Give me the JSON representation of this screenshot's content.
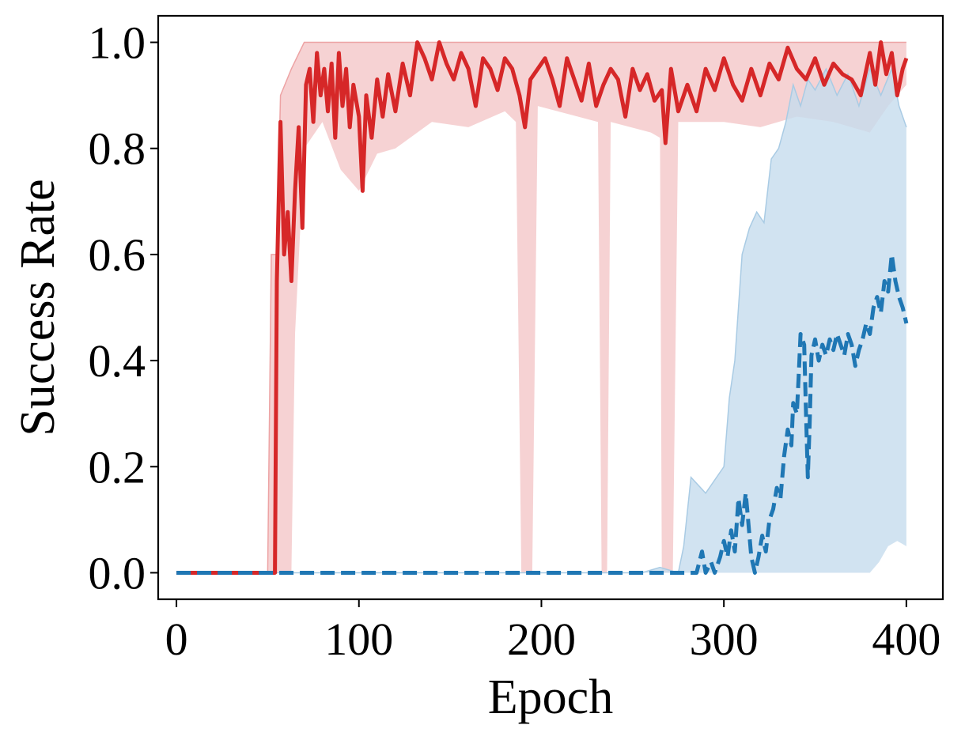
{
  "chart_data": {
    "type": "line",
    "title": "",
    "xlabel": "Epoch",
    "ylabel": "Success Rate",
    "xlim": [
      -10,
      420
    ],
    "ylim": [
      -0.05,
      1.05
    ],
    "xticks": [
      0,
      100,
      200,
      300,
      400
    ],
    "xtick_labels": [
      "0",
      "100",
      "200",
      "300",
      "400"
    ],
    "yticks": [
      0.0,
      0.2,
      0.4,
      0.6,
      0.8,
      1.0
    ],
    "ytick_labels": [
      "0.0",
      "0.2",
      "0.4",
      "0.6",
      "0.8",
      "1.0"
    ],
    "grid": false,
    "legend": "none",
    "colors": {
      "red": "#d62728",
      "blue": "#1f77b4",
      "red_band": "#f4c7c8",
      "blue_band": "#c6dcee"
    },
    "series": [
      {
        "line_style": "solid",
        "color": "#d62728",
        "points": [
          [
            0,
            0.0
          ],
          [
            10,
            0.0
          ],
          [
            20,
            0.0
          ],
          [
            30,
            0.0
          ],
          [
            40,
            0.0
          ],
          [
            50,
            0.0
          ],
          [
            54,
            0.0
          ],
          [
            55,
            0.55
          ],
          [
            57,
            0.85
          ],
          [
            59,
            0.6
          ],
          [
            61,
            0.68
          ],
          [
            63,
            0.55
          ],
          [
            65,
            0.72
          ],
          [
            67,
            0.84
          ],
          [
            69,
            0.65
          ],
          [
            71,
            0.92
          ],
          [
            73,
            0.95
          ],
          [
            75,
            0.85
          ],
          [
            77,
            0.98
          ],
          [
            79,
            0.9
          ],
          [
            81,
            0.95
          ],
          [
            83,
            0.87
          ],
          [
            85,
            0.96
          ],
          [
            87,
            0.82
          ],
          [
            89,
            0.98
          ],
          [
            91,
            0.88
          ],
          [
            93,
            0.95
          ],
          [
            95,
            0.84
          ],
          [
            97,
            0.92
          ],
          [
            100,
            0.86
          ],
          [
            102,
            0.72
          ],
          [
            104,
            0.9
          ],
          [
            107,
            0.82
          ],
          [
            110,
            0.93
          ],
          [
            113,
            0.86
          ],
          [
            116,
            0.94
          ],
          [
            120,
            0.87
          ],
          [
            124,
            0.96
          ],
          [
            128,
            0.9
          ],
          [
            132,
            1.0
          ],
          [
            136,
            0.97
          ],
          [
            140,
            0.93
          ],
          [
            144,
            1.0
          ],
          [
            148,
            0.96
          ],
          [
            152,
            0.93
          ],
          [
            156,
            0.98
          ],
          [
            160,
            0.95
          ],
          [
            164,
            0.88
          ],
          [
            168,
            0.97
          ],
          [
            172,
            0.95
          ],
          [
            176,
            0.91
          ],
          [
            180,
            0.97
          ],
          [
            184,
            0.95
          ],
          [
            188,
            0.9
          ],
          [
            191,
            0.84
          ],
          [
            194,
            0.93
          ],
          [
            198,
            0.95
          ],
          [
            202,
            0.97
          ],
          [
            206,
            0.93
          ],
          [
            210,
            0.88
          ],
          [
            214,
            0.97
          ],
          [
            218,
            0.93
          ],
          [
            222,
            0.89
          ],
          [
            226,
            0.96
          ],
          [
            230,
            0.88
          ],
          [
            234,
            0.92
          ],
          [
            238,
            0.95
          ],
          [
            242,
            0.93
          ],
          [
            246,
            0.86
          ],
          [
            250,
            0.95
          ],
          [
            254,
            0.91
          ],
          [
            258,
            0.94
          ],
          [
            262,
            0.89
          ],
          [
            266,
            0.91
          ],
          [
            268,
            0.81
          ],
          [
            271,
            0.95
          ],
          [
            275,
            0.87
          ],
          [
            280,
            0.92
          ],
          [
            285,
            0.87
          ],
          [
            290,
            0.95
          ],
          [
            295,
            0.91
          ],
          [
            300,
            0.97
          ],
          [
            305,
            0.92
          ],
          [
            310,
            0.89
          ],
          [
            315,
            0.95
          ],
          [
            320,
            0.9
          ],
          [
            325,
            0.96
          ],
          [
            330,
            0.93
          ],
          [
            335,
            0.99
          ],
          [
            340,
            0.95
          ],
          [
            345,
            0.93
          ],
          [
            350,
            0.97
          ],
          [
            355,
            0.92
          ],
          [
            360,
            0.96
          ],
          [
            365,
            0.94
          ],
          [
            370,
            0.93
          ],
          [
            375,
            0.9
          ],
          [
            380,
            0.98
          ],
          [
            383,
            0.92
          ],
          [
            386,
            1.0
          ],
          [
            389,
            0.94
          ],
          [
            392,
            0.98
          ],
          [
            395,
            0.9
          ],
          [
            398,
            0.95
          ],
          [
            400,
            0.97
          ]
        ],
        "band_lower": [
          [
            0,
            0.0
          ],
          [
            50,
            0.0
          ],
          [
            63,
            0.0
          ],
          [
            65,
            0.45
          ],
          [
            70,
            0.8
          ],
          [
            80,
            0.85
          ],
          [
            90,
            0.76
          ],
          [
            100,
            0.72
          ],
          [
            110,
            0.79
          ],
          [
            120,
            0.8
          ],
          [
            140,
            0.85
          ],
          [
            160,
            0.84
          ],
          [
            180,
            0.87
          ],
          [
            186,
            0.85
          ],
          [
            189,
            0.0
          ],
          [
            195,
            0.0
          ],
          [
            198,
            0.88
          ],
          [
            220,
            0.86
          ],
          [
            231,
            0.85
          ],
          [
            233,
            0.0
          ],
          [
            236,
            0.0
          ],
          [
            238,
            0.85
          ],
          [
            260,
            0.83
          ],
          [
            265,
            0.82
          ],
          [
            266,
            0.0
          ],
          [
            272,
            0.0
          ],
          [
            275,
            0.85
          ],
          [
            300,
            0.85
          ],
          [
            320,
            0.84
          ],
          [
            340,
            0.86
          ],
          [
            360,
            0.85
          ],
          [
            380,
            0.83
          ],
          [
            390,
            0.88
          ],
          [
            400,
            0.92
          ]
        ],
        "band_upper": [
          [
            0,
            0.0
          ],
          [
            50,
            0.0
          ],
          [
            52,
            0.6
          ],
          [
            55,
            0.6
          ],
          [
            57,
            0.9
          ],
          [
            63,
            0.95
          ],
          [
            70,
            1.0
          ],
          [
            400,
            1.0
          ]
        ]
      },
      {
        "line_style": "dashed",
        "color": "#1f77b4",
        "points": [
          [
            0,
            0.0
          ],
          [
            50,
            0.0
          ],
          [
            100,
            0.0
          ],
          [
            150,
            0.0
          ],
          [
            200,
            0.0
          ],
          [
            250,
            0.0
          ],
          [
            280,
            0.0
          ],
          [
            285,
            0.0
          ],
          [
            288,
            0.04
          ],
          [
            290,
            0.0
          ],
          [
            293,
            0.02
          ],
          [
            295,
            0.0
          ],
          [
            298,
            0.03
          ],
          [
            300,
            0.06
          ],
          [
            302,
            0.03
          ],
          [
            304,
            0.08
          ],
          [
            306,
            0.04
          ],
          [
            308,
            0.14
          ],
          [
            310,
            0.09
          ],
          [
            312,
            0.15
          ],
          [
            313,
            0.11
          ],
          [
            315,
            0.03
          ],
          [
            317,
            0.0
          ],
          [
            319,
            0.03
          ],
          [
            321,
            0.07
          ],
          [
            323,
            0.04
          ],
          [
            325,
            0.1
          ],
          [
            327,
            0.12
          ],
          [
            329,
            0.16
          ],
          [
            331,
            0.14
          ],
          [
            333,
            0.22
          ],
          [
            335,
            0.27
          ],
          [
            337,
            0.24
          ],
          [
            338,
            0.32
          ],
          [
            340,
            0.3
          ],
          [
            341,
            0.37
          ],
          [
            342,
            0.45
          ],
          [
            344,
            0.43
          ],
          [
            345,
            0.3
          ],
          [
            346,
            0.18
          ],
          [
            347,
            0.28
          ],
          [
            348,
            0.41
          ],
          [
            350,
            0.44
          ],
          [
            352,
            0.4
          ],
          [
            354,
            0.43
          ],
          [
            356,
            0.41
          ],
          [
            358,
            0.44
          ],
          [
            360,
            0.42
          ],
          [
            362,
            0.45
          ],
          [
            364,
            0.43
          ],
          [
            366,
            0.41
          ],
          [
            368,
            0.45
          ],
          [
            370,
            0.43
          ],
          [
            372,
            0.39
          ],
          [
            374,
            0.42
          ],
          [
            376,
            0.44
          ],
          [
            378,
            0.47
          ],
          [
            380,
            0.45
          ],
          [
            382,
            0.5
          ],
          [
            384,
            0.52
          ],
          [
            386,
            0.49
          ],
          [
            388,
            0.55
          ],
          [
            390,
            0.53
          ],
          [
            392,
            0.6
          ],
          [
            394,
            0.55
          ],
          [
            396,
            0.52
          ],
          [
            398,
            0.5
          ],
          [
            400,
            0.47
          ]
        ],
        "band_lower": [
          [
            0,
            0.0
          ],
          [
            380,
            0.0
          ],
          [
            385,
            0.02
          ],
          [
            390,
            0.05
          ],
          [
            395,
            0.06
          ],
          [
            400,
            0.05
          ]
        ],
        "band_upper": [
          [
            0,
            0.0
          ],
          [
            245,
            0.0
          ],
          [
            255,
            0.0
          ],
          [
            265,
            0.01
          ],
          [
            275,
            0.0
          ],
          [
            278,
            0.05
          ],
          [
            282,
            0.18
          ],
          [
            290,
            0.15
          ],
          [
            300,
            0.2
          ],
          [
            303,
            0.33
          ],
          [
            306,
            0.4
          ],
          [
            310,
            0.6
          ],
          [
            314,
            0.65
          ],
          [
            318,
            0.68
          ],
          [
            322,
            0.66
          ],
          [
            326,
            0.78
          ],
          [
            330,
            0.8
          ],
          [
            334,
            0.85
          ],
          [
            338,
            0.92
          ],
          [
            342,
            0.88
          ],
          [
            346,
            0.93
          ],
          [
            350,
            0.91
          ],
          [
            356,
            0.95
          ],
          [
            362,
            0.9
          ],
          [
            368,
            0.94
          ],
          [
            374,
            0.88
          ],
          [
            380,
            0.95
          ],
          [
            386,
            0.9
          ],
          [
            392,
            0.95
          ],
          [
            396,
            0.88
          ],
          [
            400,
            0.84
          ]
        ]
      }
    ]
  }
}
